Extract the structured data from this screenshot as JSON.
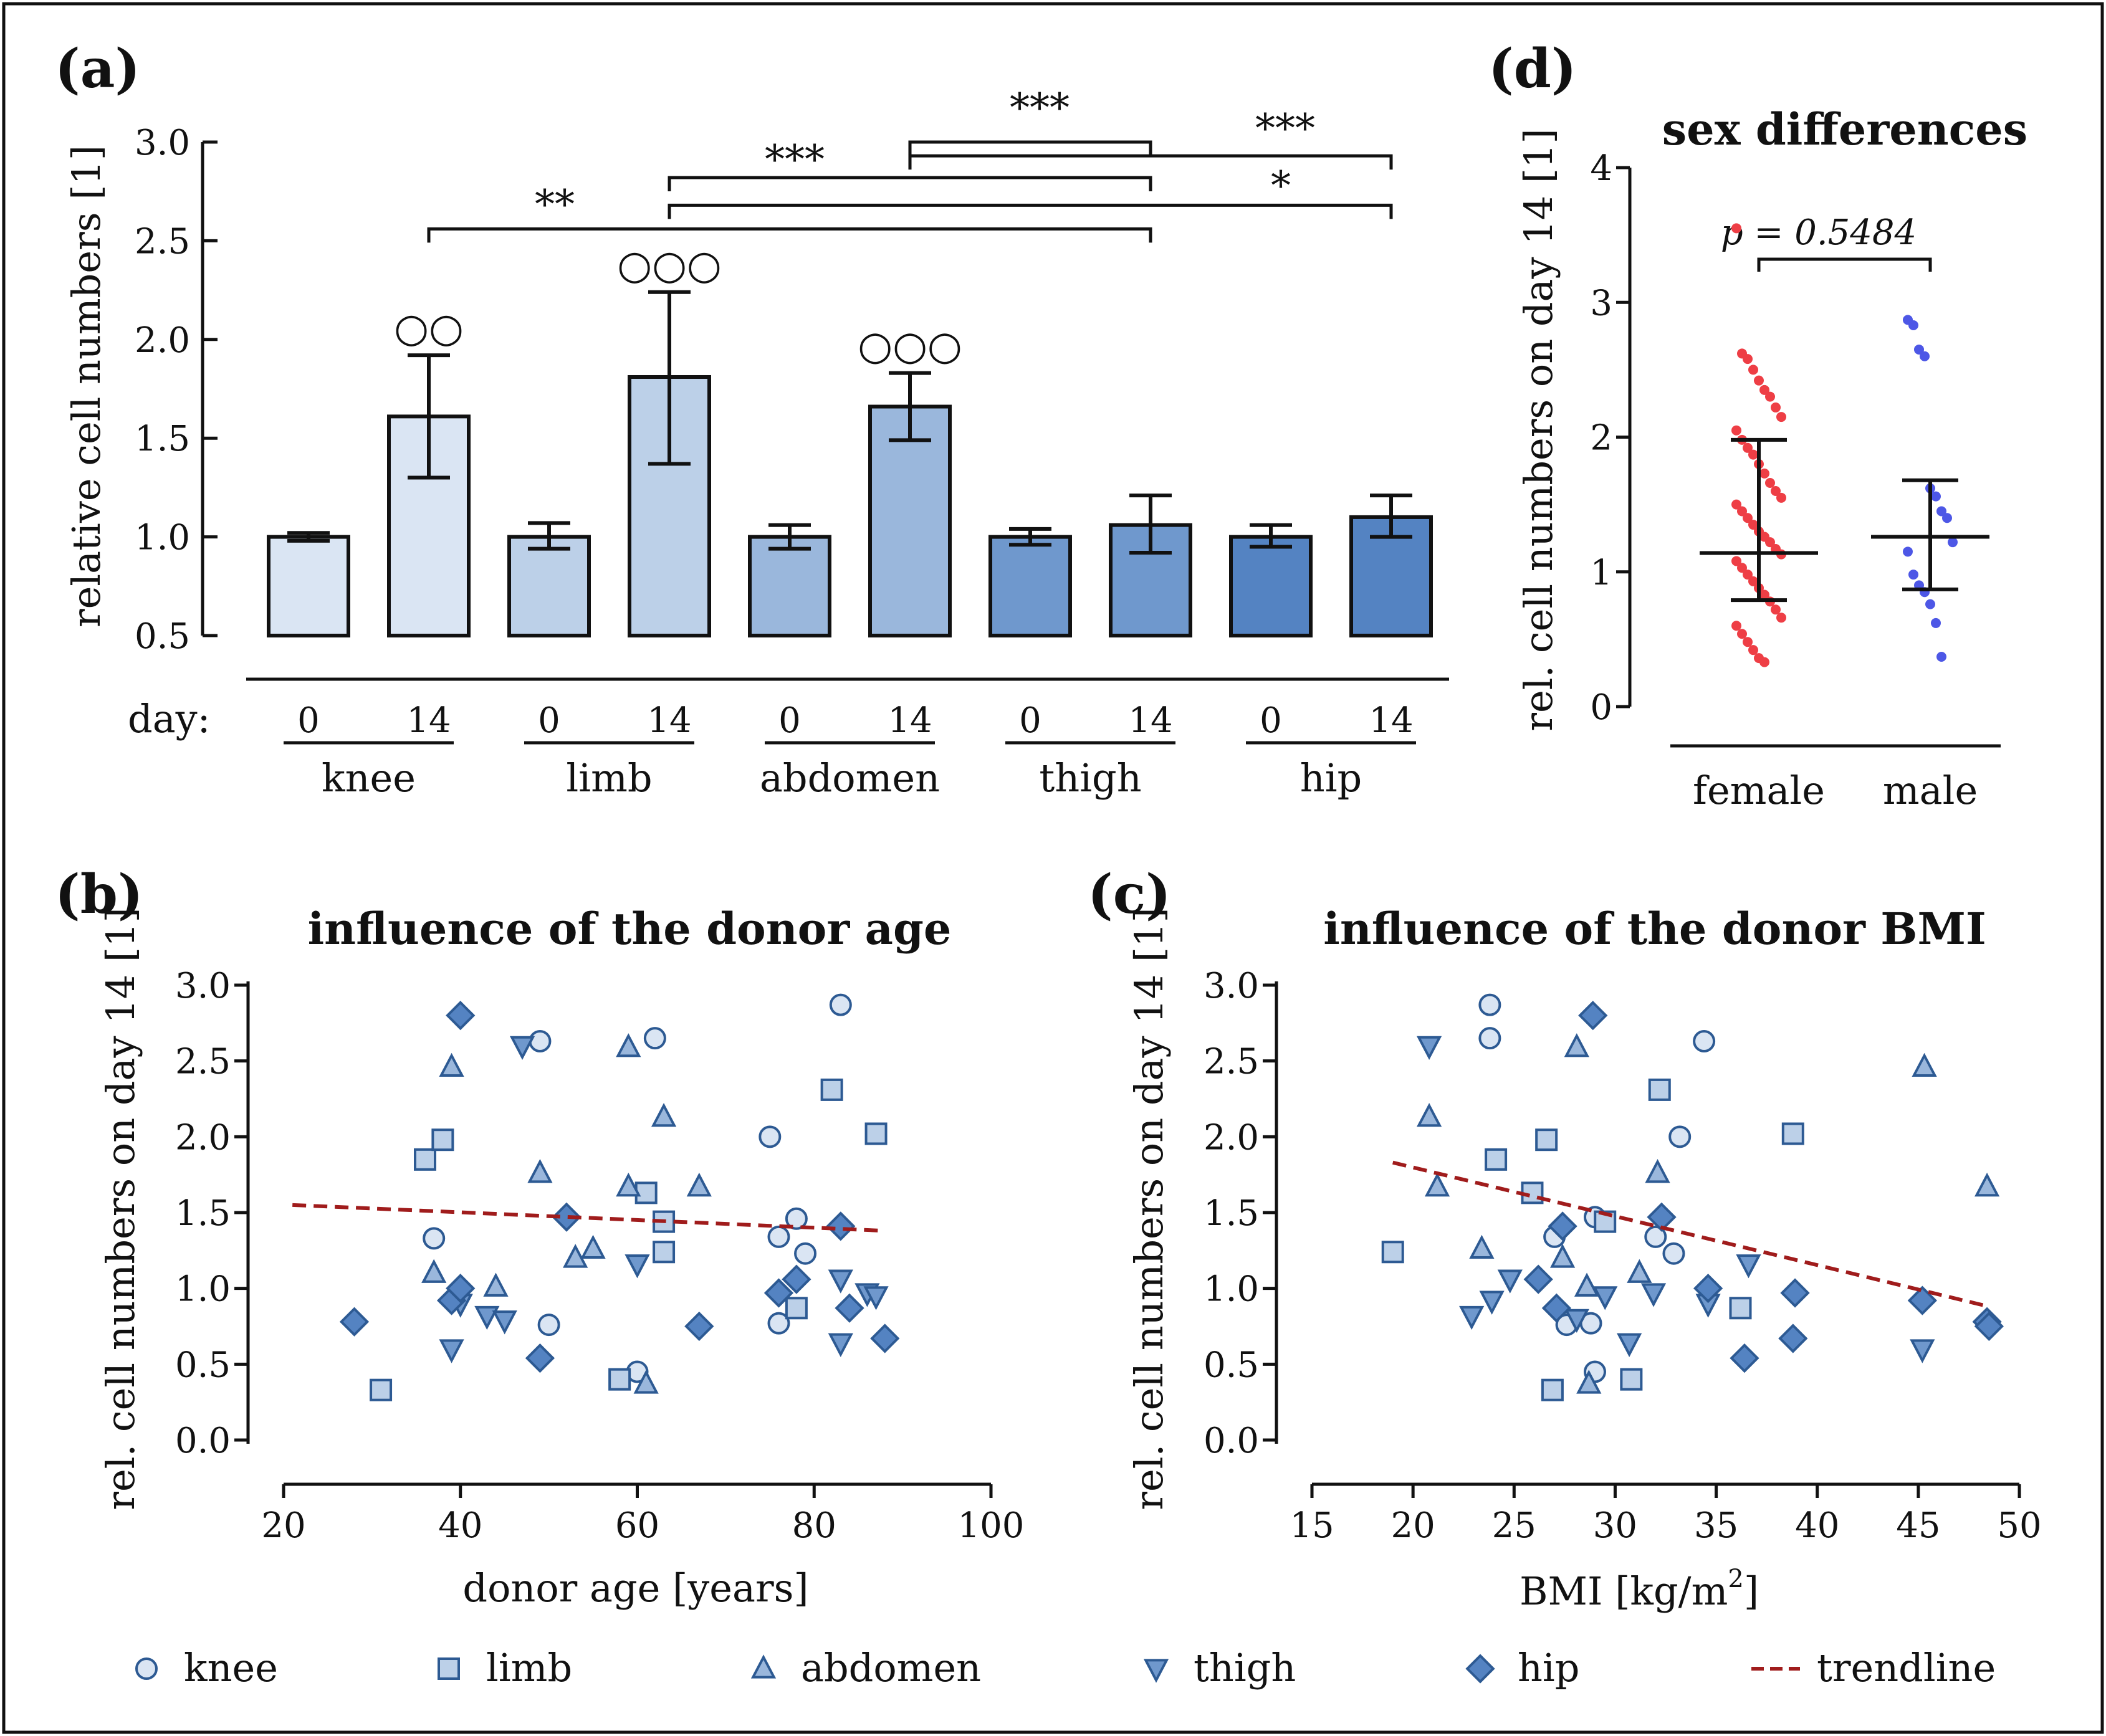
{
  "figure": {
    "panel_labels": [
      "(a)",
      "(b)",
      "(c)",
      "(d)"
    ],
    "legend": {
      "items": [
        {
          "name": "knee",
          "shape": "circle"
        },
        {
          "name": "limb",
          "shape": "square"
        },
        {
          "name": "abdomen",
          "shape": "triangle-up"
        },
        {
          "name": "thigh",
          "shape": "triangle-down"
        },
        {
          "name": "hip",
          "shape": "diamond"
        },
        {
          "name": "trendline",
          "shape": "dashed-line"
        }
      ]
    }
  },
  "colors": {
    "knee": "#dae5f3",
    "limb": "#bcd0e8",
    "abdomen": "#9ab7dc",
    "thigh": "#6f98cd",
    "hip": "#5483c2",
    "stroke": "#2d5a93",
    "trend": "#a01c1c",
    "female": "#ee3e45",
    "male": "#4d57e6"
  },
  "chart_data": [
    {
      "id": "a",
      "type": "bar",
      "panel": "(a)",
      "ylabel": "relative cell numbers [1]",
      "ylim": [
        0.5,
        3.0
      ],
      "yticks": [
        "3.0",
        "2.5",
        "2.0",
        "1.5",
        "1.0",
        "0.5"
      ],
      "day_label": "day:",
      "groups": [
        "knee",
        "limb",
        "abdomen",
        "thigh",
        "hip"
      ],
      "bars": [
        {
          "group": "knee",
          "day": "0",
          "value": 1.0,
          "err_low": 0.98,
          "err_high": 1.02,
          "marks": ""
        },
        {
          "group": "knee",
          "day": "14",
          "value": 1.61,
          "err_low": 1.3,
          "err_high": 1.92,
          "marks": "○○"
        },
        {
          "group": "limb",
          "day": "0",
          "value": 1.0,
          "err_low": 0.94,
          "err_high": 1.07,
          "marks": ""
        },
        {
          "group": "limb",
          "day": "14",
          "value": 1.81,
          "err_low": 1.37,
          "err_high": 2.24,
          "marks": "○○○"
        },
        {
          "group": "abdomen",
          "day": "0",
          "value": 1.0,
          "err_low": 0.94,
          "err_high": 1.06,
          "marks": ""
        },
        {
          "group": "abdomen",
          "day": "14",
          "value": 1.66,
          "err_low": 1.49,
          "err_high": 1.83,
          "marks": "○○○"
        },
        {
          "group": "thigh",
          "day": "0",
          "value": 1.0,
          "err_low": 0.96,
          "err_high": 1.04,
          "marks": ""
        },
        {
          "group": "thigh",
          "day": "14",
          "value": 1.06,
          "err_low": 0.92,
          "err_high": 1.21,
          "marks": ""
        },
        {
          "group": "hip",
          "day": "0",
          "value": 1.0,
          "err_low": 0.95,
          "err_high": 1.06,
          "marks": ""
        },
        {
          "group": "hip",
          "day": "14",
          "value": 1.1,
          "err_low": 1.0,
          "err_high": 1.21,
          "marks": ""
        }
      ],
      "significance": [
        {
          "from_bar": 1,
          "to_bar": 7,
          "y": 2.56,
          "label": "**"
        },
        {
          "from_bar": 3,
          "to_bar": 7,
          "y": 2.82,
          "label": "***"
        },
        {
          "from_bar": 3,
          "to_bar": 9,
          "y": 2.68,
          "label": "*"
        },
        {
          "from_bar": 5,
          "to_bar": 7,
          "y": 3.0,
          "label": "***"
        },
        {
          "from_bar": 5,
          "to_bar": 9,
          "y": 2.93,
          "label": "***"
        }
      ]
    },
    {
      "id": "b",
      "type": "scatter",
      "panel": "(b)",
      "title": "influence of the donor age",
      "xlabel": "donor age [years]",
      "ylabel": "rel. cell numbers on day 14 [1]",
      "xlim": [
        20,
        100
      ],
      "ylim": [
        0,
        3
      ],
      "xticks": [
        "20",
        "40",
        "60",
        "80",
        "100"
      ],
      "yticks": [
        "3.0",
        "2.5",
        "2.0",
        "1.5",
        "1.0",
        "0.5",
        "0.0"
      ],
      "trendline": [
        [
          21,
          1.55
        ],
        [
          88,
          1.38
        ]
      ],
      "series": [
        {
          "name": "knee",
          "points": [
            [
              37,
              1.33
            ],
            [
              49,
              2.63
            ],
            [
              50,
              0.76
            ],
            [
              60,
              0.45
            ],
            [
              62,
              2.65
            ],
            [
              75,
              2.0
            ],
            [
              76,
              1.34
            ],
            [
              76,
              0.77
            ],
            [
              78,
              1.46
            ],
            [
              79,
              1.23
            ],
            [
              83,
              2.87
            ]
          ]
        },
        {
          "name": "limb",
          "points": [
            [
              31,
              0.33
            ],
            [
              36,
              1.85
            ],
            [
              38,
              1.98
            ],
            [
              58,
              0.4
            ],
            [
              61,
              1.63
            ],
            [
              63,
              1.44
            ],
            [
              63,
              1.24
            ],
            [
              78,
              0.87
            ],
            [
              82,
              2.31
            ],
            [
              87,
              2.02
            ]
          ]
        },
        {
          "name": "abdomen",
          "points": [
            [
              37,
              1.1
            ],
            [
              39,
              2.46
            ],
            [
              44,
              1.01
            ],
            [
              49,
              1.76
            ],
            [
              53,
              1.2
            ],
            [
              55,
              1.26
            ],
            [
              59,
              2.59
            ],
            [
              59,
              1.67
            ],
            [
              61,
              0.37
            ],
            [
              63,
              2.13
            ],
            [
              67,
              1.67
            ]
          ]
        },
        {
          "name": "thigh",
          "points": [
            [
              39,
              0.6
            ],
            [
              40,
              0.9
            ],
            [
              43,
              0.82
            ],
            [
              45,
              0.79
            ],
            [
              47,
              2.6
            ],
            [
              60,
              1.16
            ],
            [
              83,
              0.64
            ],
            [
              83,
              1.06
            ],
            [
              86,
              0.97
            ],
            [
              87,
              0.95
            ]
          ]
        },
        {
          "name": "hip",
          "points": [
            [
              28,
              0.78
            ],
            [
              39,
              0.92
            ],
            [
              40,
              2.8
            ],
            [
              40,
              1.0
            ],
            [
              49,
              0.54
            ],
            [
              52,
              1.47
            ],
            [
              67,
              0.75
            ],
            [
              76,
              0.97
            ],
            [
              78,
              1.06
            ],
            [
              83,
              1.41
            ],
            [
              84,
              0.87
            ],
            [
              88,
              0.67
            ]
          ]
        }
      ]
    },
    {
      "id": "c",
      "type": "scatter",
      "panel": "(c)",
      "title": "influence of the donor BMI",
      "xlabel": "BMI [kg/m",
      "xlabel_sup": "2",
      "xlabel_end": "]",
      "ylabel": "rel. cell numbers on day 14 [1]",
      "xlim": [
        15,
        50
      ],
      "ylim": [
        0,
        3
      ],
      "xticks": [
        "15",
        "20",
        "25",
        "30",
        "35",
        "40",
        "45",
        "50"
      ],
      "yticks": [
        "3.0",
        "2.5",
        "2.0",
        "1.5",
        "1.0",
        "0.5",
        "0.0"
      ],
      "trendline": [
        [
          19,
          1.83
        ],
        [
          48.5,
          0.88
        ]
      ],
      "series": [
        {
          "name": "knee",
          "points": [
            [
              23.8,
              2.87
            ],
            [
              23.8,
              2.65
            ],
            [
              27,
              1.34
            ],
            [
              27.6,
              0.76
            ],
            [
              28.8,
              0.77
            ],
            [
              29,
              0.45
            ],
            [
              29,
              1.47
            ],
            [
              32,
              1.34
            ],
            [
              32.9,
              1.23
            ],
            [
              33.2,
              2.0
            ],
            [
              34.4,
              2.63
            ]
          ]
        },
        {
          "name": "limb",
          "points": [
            [
              19,
              1.24
            ],
            [
              24.1,
              1.85
            ],
            [
              25.9,
              1.63
            ],
            [
              26.6,
              1.98
            ],
            [
              26.9,
              0.33
            ],
            [
              29.5,
              1.44
            ],
            [
              30.8,
              0.4
            ],
            [
              32.2,
              2.31
            ],
            [
              36.2,
              0.87
            ],
            [
              38.8,
              2.02
            ]
          ]
        },
        {
          "name": "abdomen",
          "points": [
            [
              20.8,
              2.13
            ],
            [
              21.2,
              1.67
            ],
            [
              23.4,
              1.26
            ],
            [
              27.4,
              1.2
            ],
            [
              28.1,
              2.59
            ],
            [
              28.6,
              1.01
            ],
            [
              28.7,
              0.37
            ],
            [
              31.2,
              1.1
            ],
            [
              32.1,
              1.76
            ],
            [
              45.3,
              2.46
            ],
            [
              48.4,
              1.67
            ]
          ]
        },
        {
          "name": "thigh",
          "points": [
            [
              20.8,
              2.6
            ],
            [
              22.9,
              0.82
            ],
            [
              23.9,
              0.92
            ],
            [
              24.8,
              1.06
            ],
            [
              28.1,
              0.8
            ],
            [
              29.5,
              0.95
            ],
            [
              30.7,
              0.64
            ],
            [
              31.9,
              0.97
            ],
            [
              34.6,
              0.9
            ],
            [
              36.6,
              1.16
            ],
            [
              45.2,
              0.6
            ]
          ]
        },
        {
          "name": "hip",
          "points": [
            [
              26.2,
              1.06
            ],
            [
              27.1,
              0.87
            ],
            [
              27.4,
              1.41
            ],
            [
              28.9,
              2.8
            ],
            [
              32.3,
              1.47
            ],
            [
              34.6,
              1.0
            ],
            [
              36.4,
              0.54
            ],
            [
              38.8,
              0.67
            ],
            [
              38.9,
              0.97
            ],
            [
              45.2,
              0.92
            ],
            [
              48.4,
              0.78
            ],
            [
              48.5,
              0.75
            ]
          ]
        }
      ]
    },
    {
      "id": "d",
      "type": "scatter",
      "panel": "(d)",
      "title": "sex differences",
      "ylabel": "rel. cell numbers on day 14 [1]",
      "ylim": [
        0,
        4
      ],
      "yticks": [
        "4",
        "3",
        "2",
        "1",
        "0"
      ],
      "categories": [
        "female",
        "male"
      ],
      "p_label": "p = 0.5484",
      "series": [
        {
          "name": "female",
          "median": 1.14,
          "q1": 0.79,
          "q3": 1.98,
          "values": [
            3.55,
            2.62,
            2.58,
            2.5,
            2.42,
            2.35,
            2.3,
            2.22,
            2.15,
            2.05,
            1.98,
            1.92,
            1.87,
            1.8,
            1.73,
            1.66,
            1.6,
            1.55,
            1.5,
            1.45,
            1.4,
            1.35,
            1.3,
            1.26,
            1.22,
            1.17,
            1.13,
            1.08,
            1.03,
            0.98,
            0.93,
            0.88,
            0.83,
            0.78,
            0.72,
            0.66,
            0.6,
            0.54,
            0.48,
            0.42,
            0.36,
            0.33
          ]
        },
        {
          "name": "male",
          "median": 1.26,
          "q1": 0.87,
          "q3": 1.68,
          "values": [
            2.87,
            2.83,
            2.65,
            2.6,
            1.62,
            1.56,
            1.45,
            1.4,
            1.22,
            1.15,
            0.98,
            0.9,
            0.85,
            0.76,
            0.62,
            0.37
          ]
        }
      ]
    }
  ]
}
